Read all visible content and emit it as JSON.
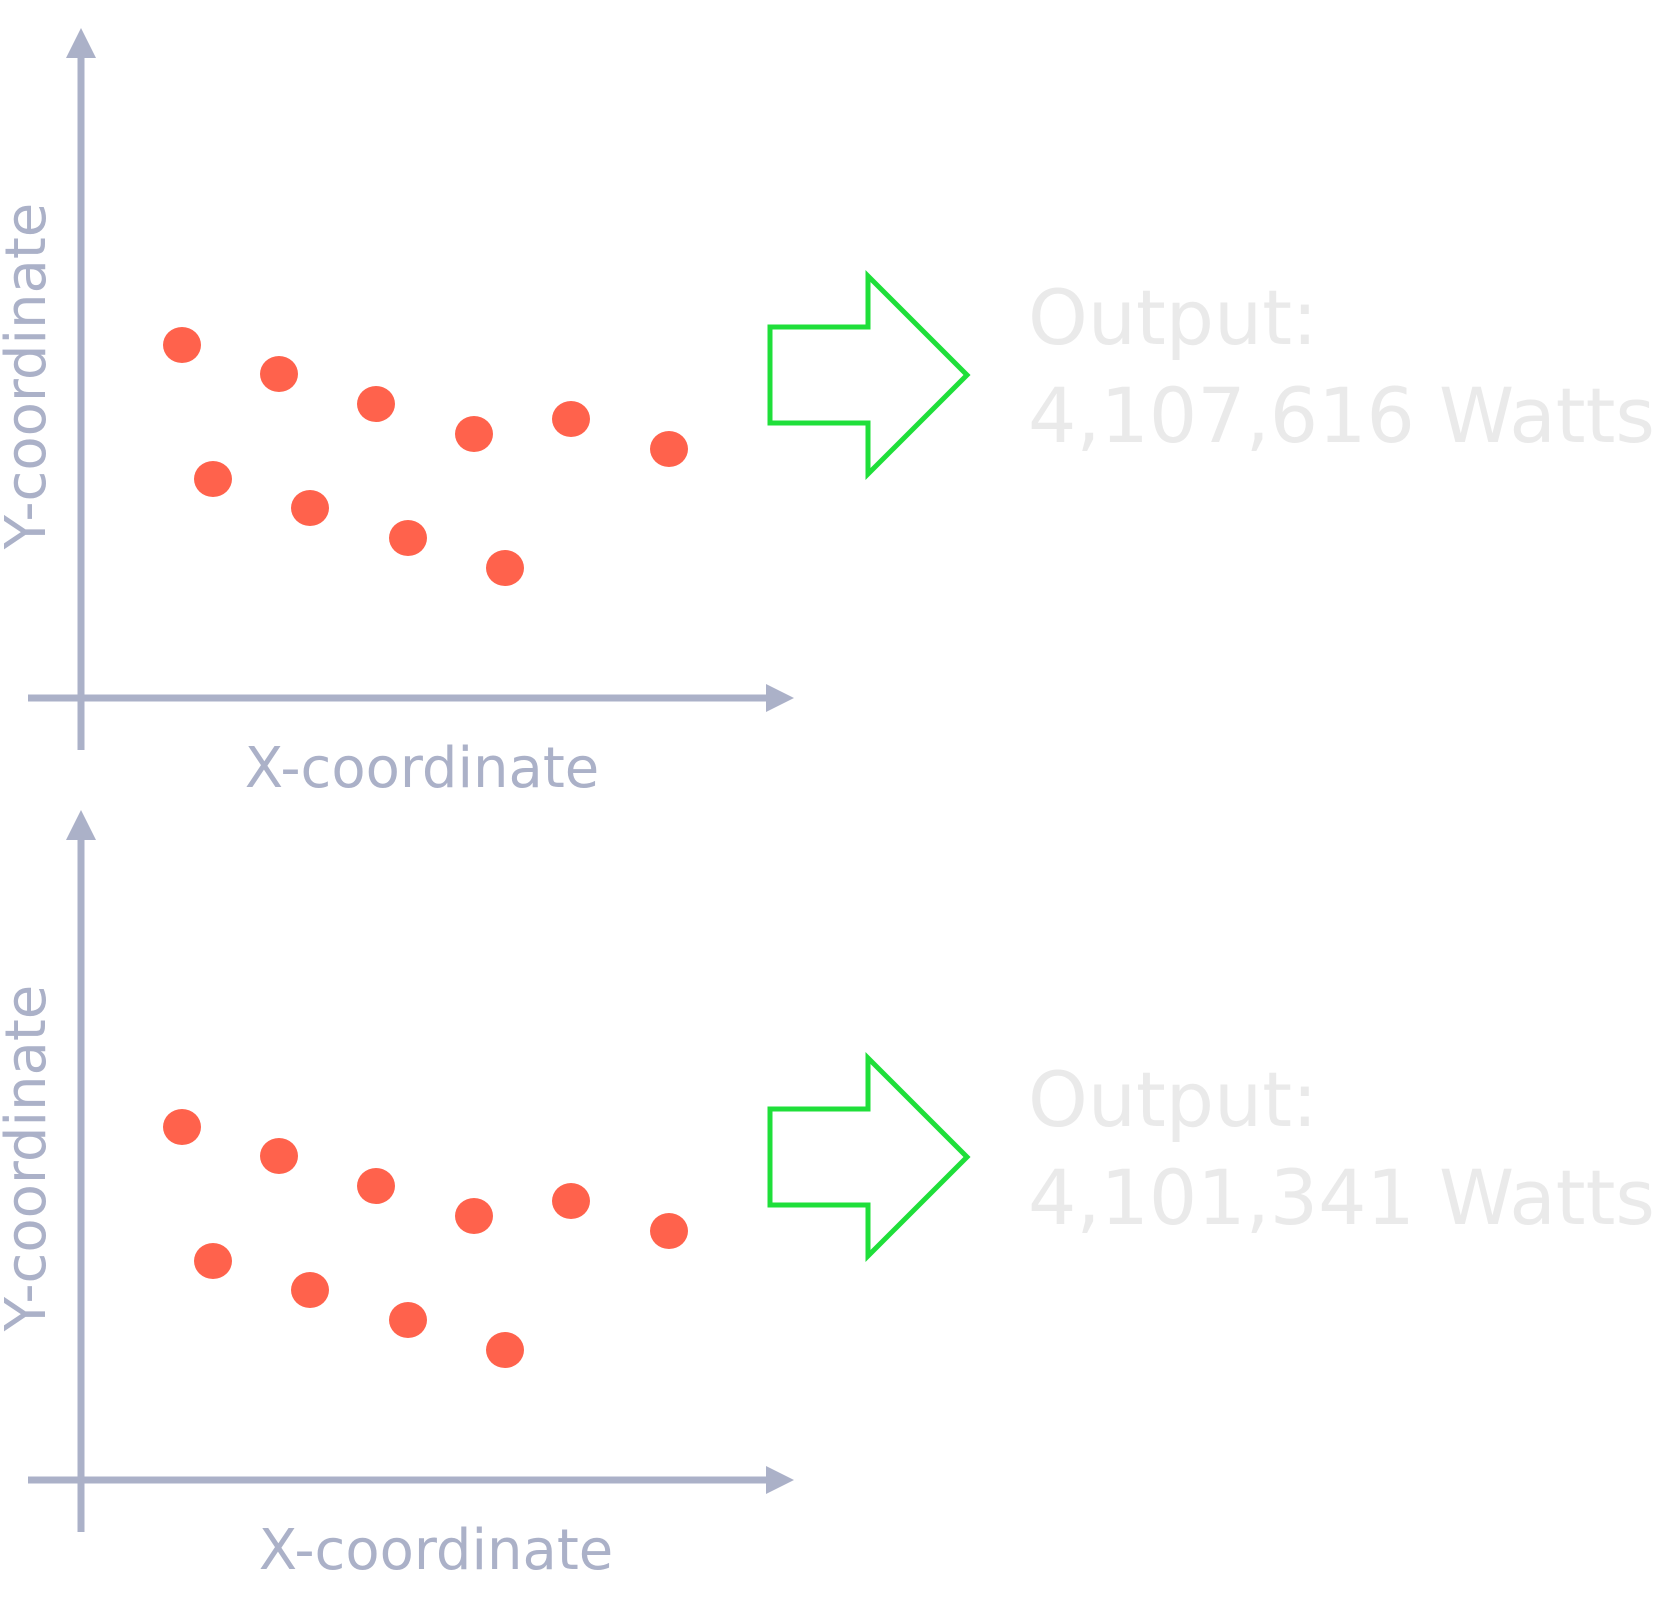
{
  "colors": {
    "axis": "#abb1c8",
    "point": "#ff624c",
    "arrow": "#1fdf3a",
    "output_text": "#eaeaea"
  },
  "panels": [
    {
      "x_axis_label": "X-coordinate",
      "y_axis_label": "Y-coordinate",
      "output_label": "Output:",
      "output_value": "4,107,616 Watts",
      "arrow_icon": "outline-right-arrow-icon"
    },
    {
      "x_axis_label": "X-coordinate",
      "y_axis_label": "Y-coordinate",
      "output_label": "Output:",
      "output_value": "4,101,341 Watts",
      "arrow_icon": "outline-right-arrow-icon"
    }
  ]
}
